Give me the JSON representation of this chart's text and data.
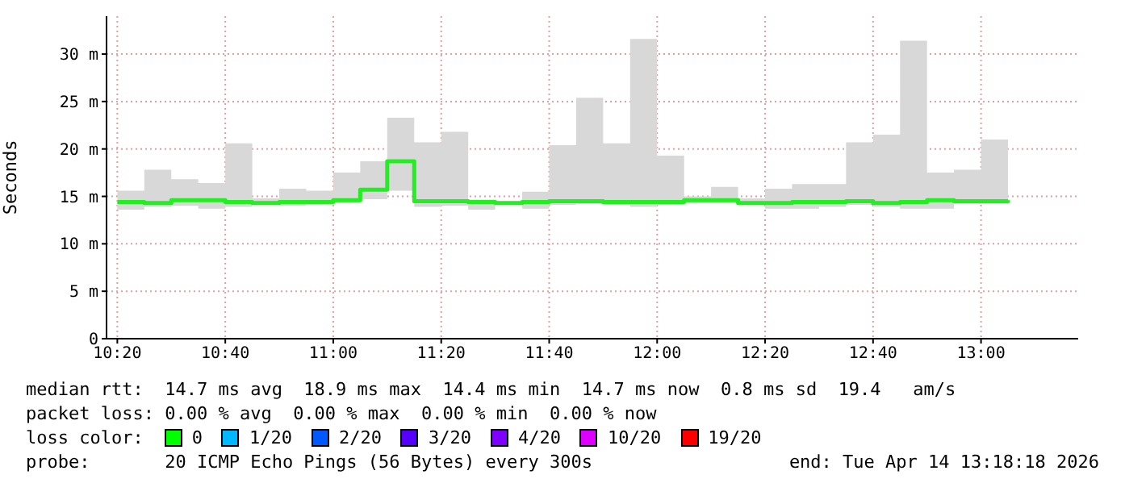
{
  "chart_data": {
    "type": "step",
    "ylabel": "Seconds",
    "x": [
      "2026-04-14T10:20",
      "2026-04-14T10:25",
      "2026-04-14T10:30",
      "2026-04-14T10:35",
      "2026-04-14T10:40",
      "2026-04-14T10:45",
      "2026-04-14T10:50",
      "2026-04-14T10:55",
      "2026-04-14T11:00",
      "2026-04-14T11:05",
      "2026-04-14T11:10",
      "2026-04-14T11:15",
      "2026-04-14T11:20",
      "2026-04-14T11:25",
      "2026-04-14T11:30",
      "2026-04-14T11:35",
      "2026-04-14T11:40",
      "2026-04-14T11:45",
      "2026-04-14T11:50",
      "2026-04-14T11:55",
      "2026-04-14T12:00",
      "2026-04-14T12:05",
      "2026-04-14T12:10",
      "2026-04-14T12:15",
      "2026-04-14T12:20",
      "2026-04-14T12:25",
      "2026-04-14T12:30",
      "2026-04-14T12:35",
      "2026-04-14T12:40",
      "2026-04-14T12:45",
      "2026-04-14T12:50",
      "2026-04-14T12:55",
      "2026-04-14T13:00",
      "2026-04-14T13:05"
    ],
    "series": [
      {
        "color": "#22ee22",
        "values": [
          14.4,
          14.3,
          14.6,
          14.6,
          14.4,
          14.3,
          14.4,
          14.4,
          14.6,
          15.7,
          18.7,
          14.5,
          14.5,
          14.4,
          14.3,
          14.4,
          14.5,
          14.5,
          14.4,
          14.4,
          14.4,
          14.6,
          14.6,
          14.3,
          14.3,
          14.4,
          14.4,
          14.5,
          14.3,
          14.4,
          14.6,
          14.5,
          14.5,
          14.6
        ],
        "lower": [
          13.6,
          13.9,
          14.0,
          13.7,
          13.9,
          14.2,
          14.0,
          14.2,
          14.3,
          14.7,
          15.6,
          13.9,
          14.0,
          13.6,
          14.2,
          13.7,
          14.1,
          14.2,
          14.1,
          13.9,
          14.1,
          14.3,
          14.3,
          14.1,
          13.7,
          13.7,
          13.9,
          14.1,
          13.9,
          13.7,
          13.7,
          14.2,
          14.2,
          14.6
        ],
        "upper": [
          15.6,
          17.8,
          16.8,
          16.4,
          20.6,
          14.8,
          15.8,
          15.6,
          17.5,
          18.7,
          23.3,
          20.7,
          21.8,
          14.6,
          14.4,
          15.5,
          20.4,
          25.4,
          20.6,
          31.6,
          19.3,
          15.0,
          16.0,
          14.8,
          15.8,
          16.3,
          16.3,
          20.7,
          21.5,
          31.4,
          17.5,
          17.8,
          21.0,
          14.6
        ]
      }
    ],
    "xlim": [
      "2026-04-14T10:18",
      "2026-04-14T13:18"
    ],
    "xticks": [
      {
        "value": "2026-04-14T10:20",
        "label": "10:20"
      },
      {
        "value": "2026-04-14T10:40",
        "label": "10:40"
      },
      {
        "value": "2026-04-14T11:00",
        "label": "11:00"
      },
      {
        "value": "2026-04-14T11:20",
        "label": "11:20"
      },
      {
        "value": "2026-04-14T11:40",
        "label": "11:40"
      },
      {
        "value": "2026-04-14T12:00",
        "label": "12:00"
      },
      {
        "value": "2026-04-14T12:20",
        "label": "12:20"
      },
      {
        "value": "2026-04-14T12:40",
        "label": "12:40"
      },
      {
        "value": "2026-04-14T13:00",
        "label": "13:00"
      }
    ],
    "ylim": [
      0,
      34
    ],
    "yticks": [
      0,
      {
        "value": 5,
        "label": "5 m"
      },
      {
        "value": 10,
        "label": "10 m"
      },
      {
        "value": 15,
        "label": "15 m"
      },
      {
        "value": 20,
        "label": "20 m"
      },
      {
        "value": 25,
        "label": "25 m"
      },
      {
        "value": 30,
        "label": "30 m"
      }
    ],
    "grid": true,
    "annotations": [
      "median rtt:  14.7 ms avg  18.9 ms max  14.4 ms min  14.7 ms now  0.8 ms sd  19.4   am/s",
      "packet loss: 0.00 % avg  0.00 % max  0.00 % min  0.00 % now",
      "loss color:",
      "0",
      "1/20",
      "2/20",
      "3/20",
      "4/20",
      "10/20",
      "19/20",
      "probe:       20 ICMP Echo Pings (56 Bytes) every 300s",
      "end: Tue Apr 14 13:18:18 2026"
    ]
  }
}
